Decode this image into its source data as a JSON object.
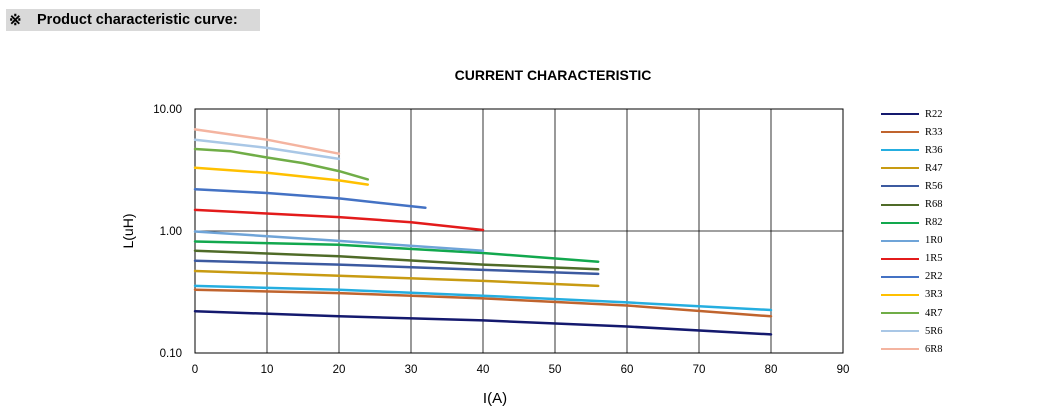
{
  "header": {
    "ref_mark": "※",
    "title": "Product characteristic curve:"
  },
  "chart_data": {
    "type": "line",
    "title": "CURRENT CHARACTERISTIC",
    "xlabel": "I(A)",
    "ylabel": "L(uH)",
    "xlim": [
      0,
      90
    ],
    "ylim": [
      0.1,
      10
    ],
    "yscale": "log",
    "xticks": [
      0,
      10,
      20,
      30,
      40,
      50,
      60,
      70,
      80,
      90
    ],
    "yticks": [
      0.1,
      1,
      10
    ],
    "xtick_labels": [
      "0",
      "10",
      "20",
      "30",
      "40",
      "50",
      "60",
      "70",
      "80",
      "90"
    ],
    "ytick_labels": [
      "0.10",
      "1.00",
      "10.00"
    ],
    "grid": true,
    "legend_position": "right",
    "series": [
      {
        "name": "R22",
        "color": "#14196e",
        "x": [
          0,
          20,
          40,
          60,
          80
        ],
        "y": [
          0.22,
          0.2,
          0.185,
          0.165,
          0.142
        ]
      },
      {
        "name": "R33",
        "color": "#c0642e",
        "x": [
          0,
          20,
          40,
          60,
          80
        ],
        "y": [
          0.33,
          0.31,
          0.28,
          0.245,
          0.2
        ]
      },
      {
        "name": "R36",
        "color": "#25aee0",
        "x": [
          0,
          20,
          40,
          60,
          80
        ],
        "y": [
          0.355,
          0.33,
          0.295,
          0.26,
          0.225
        ]
      },
      {
        "name": "R47",
        "color": "#c89b12",
        "x": [
          0,
          20,
          40,
          56
        ],
        "y": [
          0.47,
          0.43,
          0.39,
          0.355
        ]
      },
      {
        "name": "R56",
        "color": "#3c5aa0",
        "x": [
          0,
          20,
          40,
          56
        ],
        "y": [
          0.57,
          0.53,
          0.48,
          0.445
        ]
      },
      {
        "name": "R68",
        "color": "#4f6b28",
        "x": [
          0,
          20,
          40,
          56
        ],
        "y": [
          0.69,
          0.62,
          0.53,
          0.485
        ]
      },
      {
        "name": "R82",
        "color": "#12a84e",
        "x": [
          0,
          20,
          40,
          56
        ],
        "y": [
          0.82,
          0.77,
          0.66,
          0.56
        ]
      },
      {
        "name": "1R0",
        "color": "#6fa4d8",
        "x": [
          0,
          20,
          40
        ],
        "y": [
          0.99,
          0.83,
          0.69
        ]
      },
      {
        "name": "1R5",
        "color": "#e31b1b",
        "x": [
          0,
          20,
          30,
          40
        ],
        "y": [
          1.49,
          1.3,
          1.18,
          1.02
        ]
      },
      {
        "name": "2R2",
        "color": "#4472c4",
        "x": [
          0,
          10,
          20,
          32
        ],
        "y": [
          2.2,
          2.05,
          1.85,
          1.55
        ]
      },
      {
        "name": "3R3",
        "color": "#ffc000",
        "x": [
          0,
          10,
          20,
          24
        ],
        "y": [
          3.3,
          3.0,
          2.6,
          2.4
        ]
      },
      {
        "name": "4R7",
        "color": "#70ad47",
        "x": [
          0,
          5,
          10,
          15,
          20,
          24
        ],
        "y": [
          4.7,
          4.5,
          4.0,
          3.6,
          3.1,
          2.65
        ]
      },
      {
        "name": "5R6",
        "color": "#a9c7e6",
        "x": [
          0,
          10,
          20
        ],
        "y": [
          5.6,
          4.8,
          3.9
        ]
      },
      {
        "name": "6R8",
        "color": "#f4b4a0",
        "x": [
          0,
          10,
          20
        ],
        "y": [
          6.8,
          5.6,
          4.3
        ]
      }
    ]
  }
}
